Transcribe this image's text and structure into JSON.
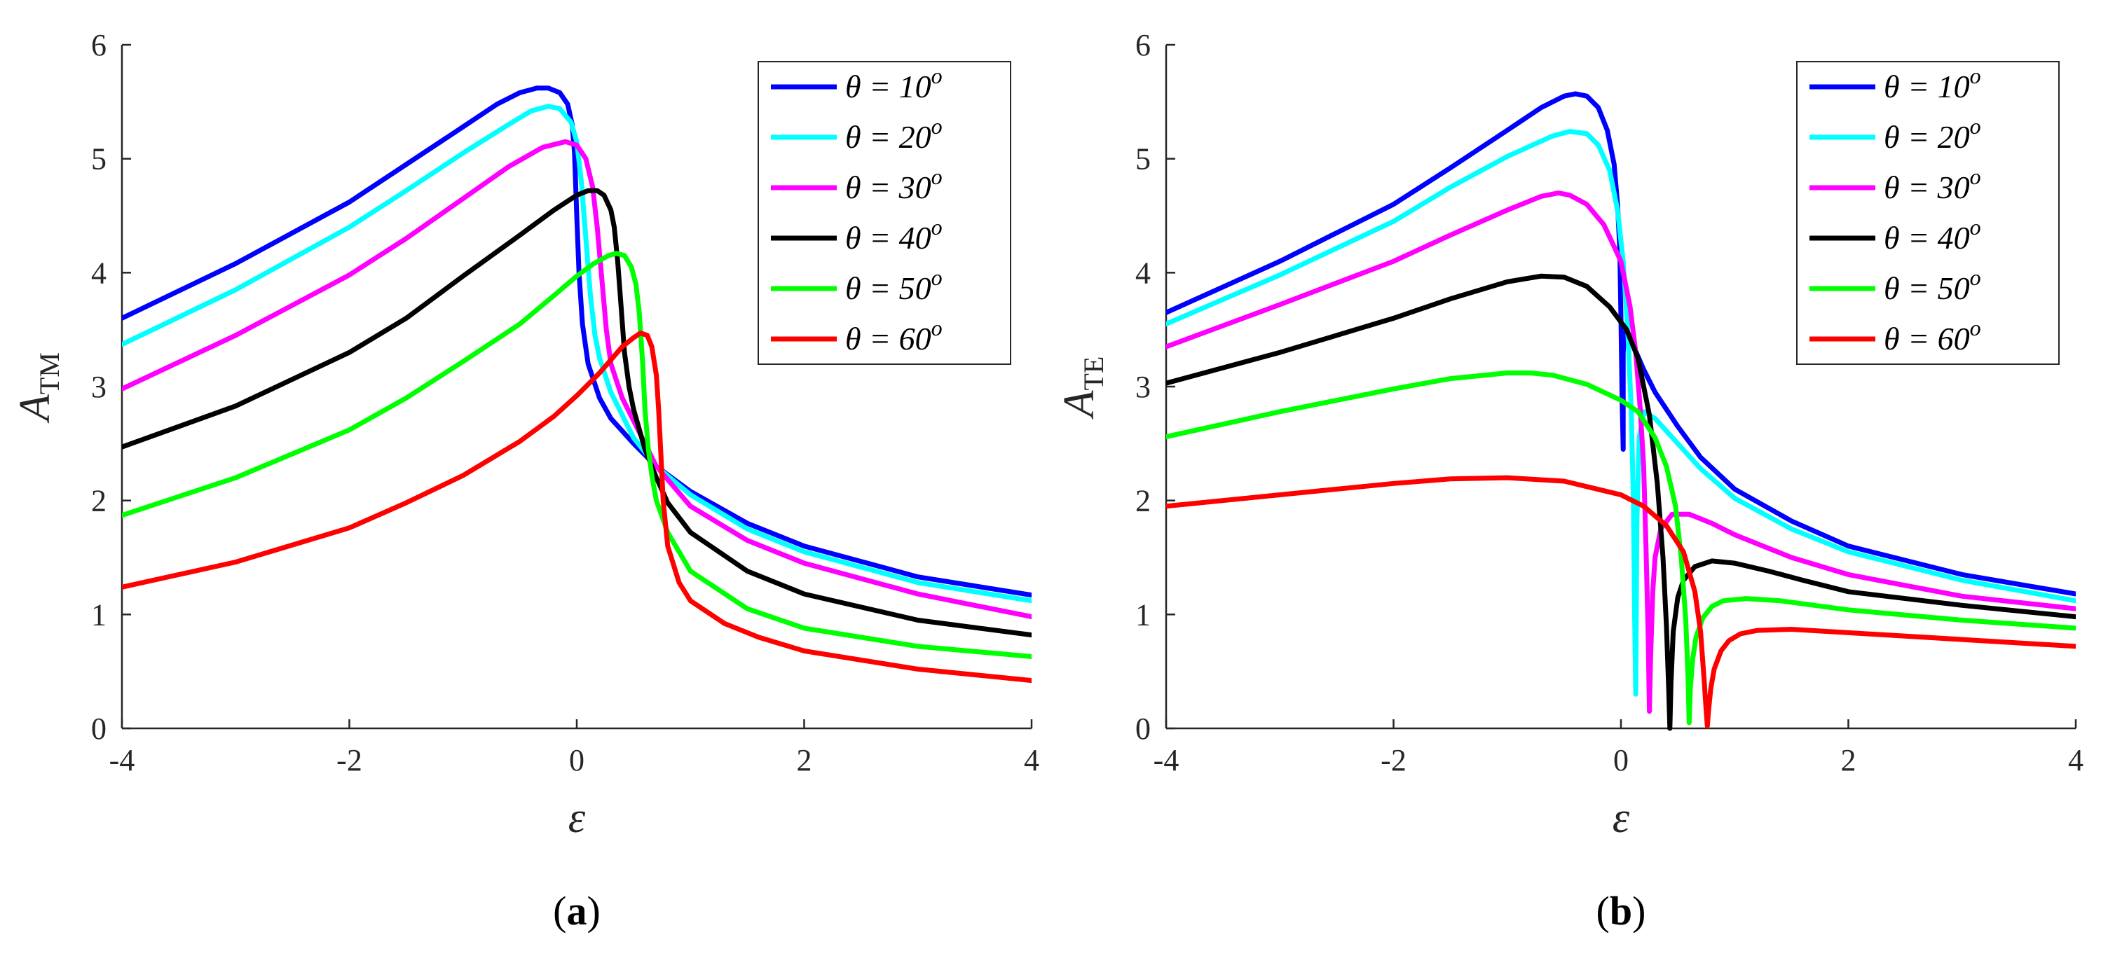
{
  "chart_data": [
    {
      "type": "line",
      "panel_label": "a",
      "xlabel": "ε",
      "ylabel": "A",
      "ylabel_sub": "TM",
      "xlim": [
        -4,
        4
      ],
      "ylim": [
        0,
        6
      ],
      "xticks": [
        -4,
        -2,
        0,
        2,
        4
      ],
      "yticks": [
        0,
        1,
        2,
        3,
        4,
        5,
        6
      ],
      "grid": false,
      "legend_position": "top-right",
      "series": [
        {
          "name": "θ = 10°",
          "label": "θ = 10",
          "sup": "o",
          "color": "#0000ff",
          "x": [
            -4,
            -3,
            -2,
            -1.5,
            -1,
            -0.7,
            -0.5,
            -0.35,
            -0.25,
            -0.15,
            -0.08,
            -0.04,
            -0.02,
            0,
            0.02,
            0.05,
            0.1,
            0.2,
            0.3,
            0.5,
            0.7,
            1,
            1.5,
            2,
            3,
            4
          ],
          "y": [
            3.6,
            4.08,
            4.62,
            4.95,
            5.28,
            5.48,
            5.58,
            5.62,
            5.62,
            5.58,
            5.48,
            5.3,
            5.05,
            4.5,
            4.0,
            3.55,
            3.2,
            2.9,
            2.72,
            2.5,
            2.3,
            2.08,
            1.8,
            1.6,
            1.33,
            1.17
          ]
        },
        {
          "name": "θ = 20°",
          "label": "θ = 20",
          "sup": "o",
          "color": "#00ffff",
          "x": [
            -4,
            -3,
            -2,
            -1.5,
            -1,
            -0.6,
            -0.4,
            -0.25,
            -0.15,
            -0.05,
            0,
            0.04,
            0.08,
            0.12,
            0.16,
            0.2,
            0.3,
            0.5,
            0.7,
            1,
            1.5,
            2,
            3,
            4
          ],
          "y": [
            3.37,
            3.85,
            4.4,
            4.72,
            5.05,
            5.3,
            5.42,
            5.46,
            5.44,
            5.32,
            5.15,
            4.8,
            4.3,
            3.8,
            3.45,
            3.25,
            2.95,
            2.55,
            2.3,
            2.05,
            1.75,
            1.55,
            1.28,
            1.12
          ]
        },
        {
          "name": "θ = 30°",
          "label": "θ = 30",
          "sup": "o",
          "color": "#ff00ff",
          "x": [
            -4,
            -3,
            -2,
            -1.5,
            -1,
            -0.6,
            -0.3,
            -0.1,
            0,
            0.08,
            0.14,
            0.18,
            0.22,
            0.26,
            0.3,
            0.4,
            0.5,
            0.6,
            0.7,
            1,
            1.5,
            2,
            3,
            4
          ],
          "y": [
            2.98,
            3.45,
            3.98,
            4.3,
            4.65,
            4.93,
            5.1,
            5.15,
            5.12,
            5.0,
            4.75,
            4.4,
            3.95,
            3.5,
            3.2,
            2.9,
            2.7,
            2.5,
            2.3,
            1.95,
            1.65,
            1.45,
            1.18,
            0.98
          ]
        },
        {
          "name": "θ = 40°",
          "label": "θ = 40",
          "sup": "o",
          "color": "#000000",
          "x": [
            -4,
            -3,
            -2,
            -1.5,
            -1,
            -0.5,
            -0.2,
            0,
            0.1,
            0.18,
            0.24,
            0.3,
            0.33,
            0.36,
            0.39,
            0.42,
            0.46,
            0.5,
            0.6,
            0.7,
            0.8,
            1,
            1.5,
            2,
            3,
            4
          ],
          "y": [
            2.47,
            2.83,
            3.3,
            3.6,
            3.97,
            4.33,
            4.55,
            4.68,
            4.72,
            4.72,
            4.68,
            4.55,
            4.4,
            4.1,
            3.7,
            3.3,
            3.0,
            2.8,
            2.45,
            2.2,
            1.98,
            1.72,
            1.38,
            1.18,
            0.95,
            0.82
          ]
        },
        {
          "name": "θ = 50°",
          "label": "θ = 50",
          "sup": "o",
          "color": "#00ff00",
          "x": [
            -4,
            -3,
            -2,
            -1.5,
            -1,
            -0.5,
            -0.2,
            0,
            0.15,
            0.28,
            0.35,
            0.42,
            0.48,
            0.52,
            0.55,
            0.58,
            0.6,
            0.63,
            0.66,
            0.7,
            0.8,
            1,
            1.5,
            2,
            3,
            4
          ],
          "y": [
            1.87,
            2.2,
            2.62,
            2.9,
            3.22,
            3.55,
            3.8,
            3.97,
            4.08,
            4.15,
            4.17,
            4.15,
            4.05,
            3.9,
            3.65,
            3.2,
            2.8,
            2.45,
            2.22,
            2.0,
            1.72,
            1.38,
            1.05,
            0.88,
            0.72,
            0.63
          ]
        },
        {
          "name": "θ = 60°",
          "label": "θ = 60",
          "sup": "o",
          "color": "#ff0000",
          "x": [
            -4,
            -3,
            -2,
            -1.5,
            -1,
            -0.5,
            -0.2,
            0,
            0.2,
            0.4,
            0.5,
            0.56,
            0.62,
            0.66,
            0.7,
            0.72,
            0.74,
            0.76,
            0.8,
            0.9,
            1,
            1.3,
            1.6,
            2,
            3,
            4
          ],
          "y": [
            1.24,
            1.46,
            1.76,
            1.98,
            2.22,
            2.52,
            2.74,
            2.92,
            3.12,
            3.35,
            3.43,
            3.47,
            3.45,
            3.35,
            3.1,
            2.8,
            2.4,
            2.0,
            1.6,
            1.28,
            1.12,
            0.92,
            0.8,
            0.68,
            0.52,
            0.42
          ]
        }
      ]
    },
    {
      "type": "line",
      "panel_label": "b",
      "xlabel": "ε",
      "ylabel": "A",
      "ylabel_sub": "TE",
      "xlim": [
        -4,
        4
      ],
      "ylim": [
        0,
        6
      ],
      "xticks": [
        -4,
        -2,
        0,
        2,
        4
      ],
      "yticks": [
        0,
        1,
        2,
        3,
        4,
        5,
        6
      ],
      "grid": false,
      "legend_position": "top-right",
      "series": [
        {
          "name": "θ = 10°",
          "label": "θ = 10",
          "sup": "o",
          "color": "#0000ff",
          "x": [
            -4,
            -3,
            -2,
            -1.5,
            -1,
            -0.7,
            -0.5,
            -0.4,
            -0.3,
            -0.2,
            -0.12,
            -0.06,
            -0.03,
            -0.01,
            0.0,
            0.01,
            0.02,
            0.02,
            0.03,
            0.05,
            0.1,
            0.2,
            0.3,
            0.5,
            0.7,
            1,
            1.5,
            2,
            3,
            4
          ],
          "y": [
            3.65,
            4.1,
            4.6,
            4.92,
            5.25,
            5.45,
            5.55,
            5.57,
            5.55,
            5.45,
            5.25,
            4.95,
            4.6,
            4.2,
            3.6,
            2.9,
            2.45,
            3.3,
            3.45,
            3.5,
            3.38,
            3.15,
            2.95,
            2.65,
            2.38,
            2.1,
            1.82,
            1.6,
            1.35,
            1.18
          ]
        },
        {
          "name": "θ = 20°",
          "label": "θ = 20",
          "sup": "o",
          "color": "#00ffff",
          "x": [
            -4,
            -3,
            -2,
            -1.5,
            -1,
            -0.6,
            -0.45,
            -0.3,
            -0.2,
            -0.1,
            -0.03,
            0.02,
            0.06,
            0.09,
            0.11,
            0.12,
            0.13,
            0.14,
            0.16,
            0.2,
            0.3,
            0.5,
            0.7,
            1,
            1.5,
            2,
            3,
            4
          ],
          "y": [
            3.55,
            3.98,
            4.45,
            4.75,
            5.02,
            5.2,
            5.24,
            5.22,
            5.12,
            4.9,
            4.55,
            4.1,
            3.5,
            2.8,
            2.0,
            1.0,
            0.3,
            1.8,
            2.55,
            2.78,
            2.72,
            2.5,
            2.28,
            2.02,
            1.75,
            1.55,
            1.3,
            1.12
          ]
        },
        {
          "name": "θ = 30°",
          "label": "θ = 30",
          "sup": "o",
          "color": "#ff00ff",
          "x": [
            -4,
            -3,
            -2,
            -1.5,
            -1,
            -0.7,
            -0.55,
            -0.45,
            -0.3,
            -0.15,
            0,
            0.08,
            0.13,
            0.17,
            0.2,
            0.22,
            0.24,
            0.25,
            0.26,
            0.28,
            0.3,
            0.35,
            0.45,
            0.6,
            0.8,
            1,
            1.5,
            2,
            3,
            4
          ],
          "y": [
            3.35,
            3.72,
            4.1,
            4.33,
            4.55,
            4.67,
            4.7,
            4.68,
            4.6,
            4.42,
            4.1,
            3.7,
            3.3,
            2.8,
            2.3,
            1.6,
            0.8,
            0.15,
            0.6,
            1.2,
            1.5,
            1.75,
            1.88,
            1.88,
            1.8,
            1.7,
            1.5,
            1.35,
            1.16,
            1.05
          ]
        },
        {
          "name": "θ = 40°",
          "label": "θ = 40",
          "sup": "o",
          "color": "#000000",
          "x": [
            -4,
            -3,
            -2,
            -1.5,
            -1,
            -0.7,
            -0.5,
            -0.3,
            -0.1,
            0.05,
            0.15,
            0.25,
            0.32,
            0.37,
            0.4,
            0.42,
            0.43,
            0.44,
            0.46,
            0.5,
            0.55,
            0.65,
            0.8,
            1,
            1.3,
            1.6,
            2,
            3,
            4
          ],
          "y": [
            3.03,
            3.3,
            3.6,
            3.77,
            3.92,
            3.97,
            3.96,
            3.88,
            3.7,
            3.5,
            3.25,
            2.75,
            2.15,
            1.5,
            0.9,
            0.35,
            0.0,
            0.4,
            0.85,
            1.15,
            1.3,
            1.42,
            1.47,
            1.45,
            1.38,
            1.3,
            1.2,
            1.08,
            0.98
          ]
        },
        {
          "name": "θ = 50°",
          "label": "θ = 50",
          "sup": "o",
          "color": "#00ff00",
          "x": [
            -4,
            -3,
            -2,
            -1.5,
            -1,
            -0.8,
            -0.6,
            -0.3,
            0,
            0.15,
            0.3,
            0.4,
            0.48,
            0.53,
            0.57,
            0.59,
            0.6,
            0.61,
            0.63,
            0.66,
            0.72,
            0.8,
            0.9,
            1.1,
            1.4,
            2,
            3,
            4
          ],
          "y": [
            2.56,
            2.78,
            2.98,
            3.07,
            3.12,
            3.12,
            3.1,
            3.02,
            2.88,
            2.78,
            2.55,
            2.3,
            1.95,
            1.5,
            0.95,
            0.45,
            0.05,
            0.35,
            0.6,
            0.8,
            0.97,
            1.07,
            1.12,
            1.14,
            1.12,
            1.04,
            0.95,
            0.88
          ]
        },
        {
          "name": "θ = 60°",
          "label": "θ = 60",
          "sup": "o",
          "color": "#ff0000",
          "x": [
            -4,
            -3,
            -2,
            -1.5,
            -1,
            -0.5,
            0,
            0.2,
            0.4,
            0.55,
            0.65,
            0.7,
            0.73,
            0.75,
            0.76,
            0.77,
            0.79,
            0.82,
            0.88,
            0.95,
            1.05,
            1.2,
            1.5,
            2,
            3,
            4
          ],
          "y": [
            1.95,
            2.05,
            2.15,
            2.19,
            2.2,
            2.17,
            2.05,
            1.95,
            1.78,
            1.55,
            1.2,
            0.85,
            0.45,
            0.15,
            0.02,
            0.15,
            0.35,
            0.52,
            0.68,
            0.77,
            0.83,
            0.86,
            0.87,
            0.84,
            0.78,
            0.72
          ]
        }
      ]
    }
  ]
}
